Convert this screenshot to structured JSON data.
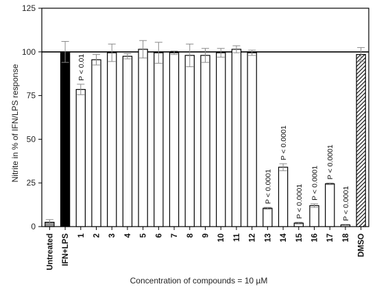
{
  "chart_data": {
    "type": "bar",
    "ylabel": "Nitrite in % of IFN/LPS response",
    "xlabel": "Concentration of compounds = 10 µM",
    "ylim": [
      0,
      125
    ],
    "yticks": [
      0,
      25,
      50,
      75,
      100,
      125
    ],
    "grid": false,
    "reference_line": 100,
    "categories": [
      "Untreated",
      "IFN+LPS",
      "1",
      "2",
      "3",
      "4",
      "5",
      "6",
      "7",
      "8",
      "9",
      "10",
      "11",
      "12",
      "13",
      "14",
      "15",
      "16",
      "17",
      "18",
      "DMSO"
    ],
    "values": [
      2.5,
      100,
      78.5,
      95.5,
      99.5,
      97.5,
      101.5,
      99.5,
      99.5,
      98,
      98,
      99.5,
      101.5,
      99.5,
      10.5,
      34,
      2,
      12,
      24.5,
      1,
      98.5
    ],
    "errors": [
      1.5,
      6,
      3,
      3,
      5,
      1.5,
      5,
      6,
      1,
      6.5,
      4,
      2.5,
      2,
      1.5,
      0.5,
      2,
      0.5,
      1,
      0.5,
      0.3,
      4
    ],
    "bar_styles": [
      "gray",
      "black",
      "white",
      "white",
      "white",
      "white",
      "white",
      "white",
      "white",
      "white",
      "white",
      "white",
      "white",
      "white",
      "white",
      "white",
      "white",
      "white",
      "white",
      "white",
      "hatched"
    ],
    "annotations": [
      {
        "category": "1",
        "text": "P < 0.01"
      },
      {
        "category": "13",
        "text": "P < 0.0001"
      },
      {
        "category": "14",
        "text": "P < 0.0001"
      },
      {
        "category": "15",
        "text": "P < 0.0001"
      },
      {
        "category": "16",
        "text": "P < 0.0001"
      },
      {
        "category": "17",
        "text": "P < 0.0001"
      },
      {
        "category": "18",
        "text": "P < 0.0001"
      }
    ],
    "colors": {
      "gray": "#9a9a9a",
      "black": "#000000",
      "white": "#ffffff",
      "stroke": "#000000",
      "error": "#8a8a8a"
    }
  }
}
